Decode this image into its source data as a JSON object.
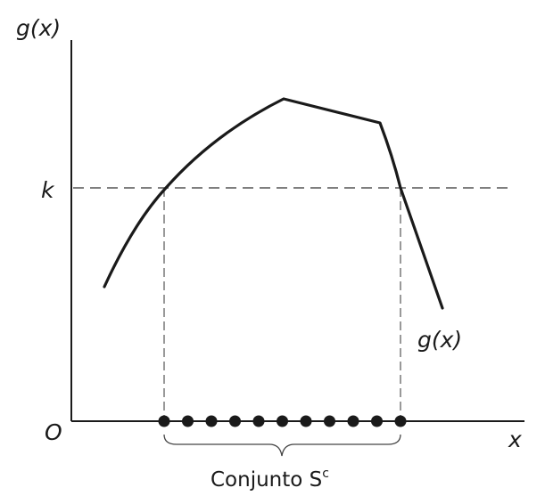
{
  "labels": {
    "y_axis": "g(x)",
    "x_axis": "x",
    "origin": "O",
    "k_level": "k",
    "curve": "g(x)",
    "set_main": "Conjunto S",
    "set_sup": "c"
  },
  "points_count": 11,
  "colors": {
    "ink": "#1a1a1a",
    "guide": "#555555",
    "background": "#ffffff"
  }
}
